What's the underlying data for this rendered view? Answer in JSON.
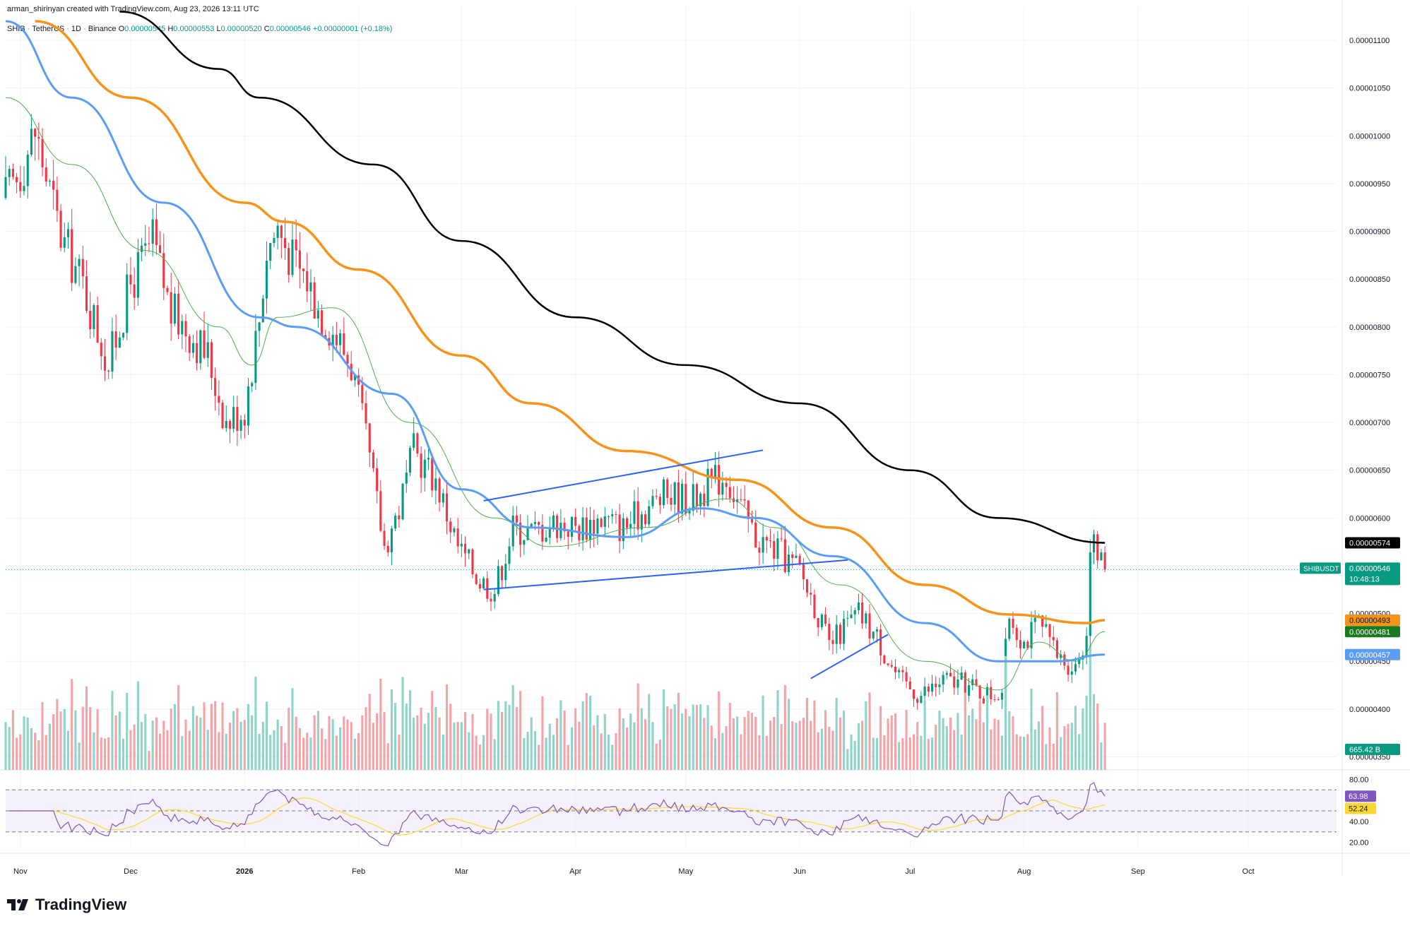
{
  "header": {
    "created_by": "arman_shirinyan created with TradingView.com, Aug 23, 2026 13:11 UTC",
    "symbol": "SHIB",
    "pair": "TetherUS",
    "interval": "1D",
    "exchange": "Binance",
    "open_label": "O",
    "open": "0.00000545",
    "high_label": "H",
    "high": "0.00000553",
    "low_label": "L",
    "low": "0.00000520",
    "close_label": "C",
    "close": "0.00000546",
    "change": "+0.00000001 (+0.18%)"
  },
  "brand": {
    "name": "TradingView"
  },
  "colors": {
    "up": "#089981",
    "down": "#f23645",
    "vol_up": "#8fd4c8",
    "vol_down": "#f5a3a9",
    "ma200": "#000000",
    "ma100": "#f7931a",
    "ma50": "#5b9cf6",
    "ma20": "#4caf50",
    "trendline": "#2962ff",
    "rsi": "#7e57c2",
    "rsi_ma": "#fdd835"
  },
  "chart_data": {
    "type": "candlestick",
    "x_axis_labels": [
      "Nov",
      "Dec",
      "2026",
      "Feb",
      "Mar",
      "Apr",
      "May",
      "Jun",
      "Jul",
      "Aug",
      "Sep",
      "Oct"
    ],
    "price_axis_labels": [
      "0.00001100",
      "0.00001050",
      "0.00001000",
      "0.00000950",
      "0.00000900",
      "0.00000850",
      "0.00000800",
      "0.00000750",
      "0.00000700",
      "0.00000650",
      "0.00000600",
      "0.00000550",
      "0.00000500",
      "0.00000450",
      "0.00000400",
      "0.00000350"
    ],
    "price_range": [
      3.4e-06,
      1.12e-05
    ],
    "x_start": "2025-10-28",
    "x_end": "2026-10-25",
    "last_price": {
      "label": "SHIBUSDT",
      "value": "0.00000546",
      "countdown": "10:48:13"
    },
    "ma_labels": [
      {
        "name": "MA200",
        "value": "0.00000574"
      },
      {
        "name": "MA100",
        "value": "0.00000493"
      },
      {
        "name": "MA20",
        "value": "0.00000481"
      },
      {
        "name": "MA50",
        "value": "0.00000457"
      }
    ],
    "volume_label": "665.42 B",
    "rsi": {
      "value": "63.98",
      "ma_value": "52.24",
      "axis_labels": [
        "80.00",
        "40.00",
        "20.00"
      ],
      "upper": 70,
      "middle": 50,
      "lower": 30
    },
    "anchors": [
      {
        "date": "2025-10-28",
        "price": 9.35e-06
      },
      {
        "date": "2025-11-01",
        "price": 9.65e-06
      },
      {
        "date": "2025-11-05",
        "price": 1.005e-05
      },
      {
        "date": "2025-11-12",
        "price": 8.95e-06
      },
      {
        "date": "2025-11-18",
        "price": 8.45e-06
      },
      {
        "date": "2025-11-25",
        "price": 7.6e-06
      },
      {
        "date": "2025-12-01",
        "price": 8.45e-06
      },
      {
        "date": "2025-12-07",
        "price": 8.9e-06
      },
      {
        "date": "2025-12-12",
        "price": 8.15e-06
      },
      {
        "date": "2025-12-16",
        "price": 8e-06
      },
      {
        "date": "2025-12-22",
        "price": 7.7e-06
      },
      {
        "date": "2025-12-27",
        "price": 7e-06
      },
      {
        "date": "2026-01-01",
        "price": 7.15e-06
      },
      {
        "date": "2026-01-05",
        "price": 8.1e-06
      },
      {
        "date": "2026-01-07",
        "price": 8.8e-06
      },
      {
        "date": "2026-01-10",
        "price": 9.05e-06
      },
      {
        "date": "2026-01-14",
        "price": 8.7e-06
      },
      {
        "date": "2026-01-18",
        "price": 8.5e-06
      },
      {
        "date": "2026-01-21",
        "price": 8.2e-06
      },
      {
        "date": "2026-01-26",
        "price": 7.9e-06
      },
      {
        "date": "2026-01-30",
        "price": 7.6e-06
      },
      {
        "date": "2026-02-04",
        "price": 6.6e-06
      },
      {
        "date": "2026-02-08",
        "price": 5.7e-06
      },
      {
        "date": "2026-02-12",
        "price": 6.1e-06
      },
      {
        "date": "2026-02-16",
        "price": 6.7e-06
      },
      {
        "date": "2026-02-22",
        "price": 6.4e-06
      },
      {
        "date": "2026-02-28",
        "price": 5.7e-06
      },
      {
        "date": "2026-03-06",
        "price": 5.35e-06
      },
      {
        "date": "2026-03-10",
        "price": 5.25e-06
      },
      {
        "date": "2026-03-15",
        "price": 5.9e-06
      },
      {
        "date": "2026-03-20",
        "price": 5.85e-06
      },
      {
        "date": "2026-03-26",
        "price": 5.95e-06
      },
      {
        "date": "2026-04-02",
        "price": 5.9e-06
      },
      {
        "date": "2026-04-08",
        "price": 6e-06
      },
      {
        "date": "2026-04-14",
        "price": 5.9e-06
      },
      {
        "date": "2026-04-20",
        "price": 6.1e-06
      },
      {
        "date": "2026-04-26",
        "price": 6.25e-06
      },
      {
        "date": "2026-05-03",
        "price": 6.2e-06
      },
      {
        "date": "2026-05-09",
        "price": 6.4e-06
      },
      {
        "date": "2026-05-12",
        "price": 6.45e-06
      },
      {
        "date": "2026-05-16",
        "price": 6.1e-06
      },
      {
        "date": "2026-05-20",
        "price": 5.8e-06
      },
      {
        "date": "2026-05-26",
        "price": 5.65e-06
      },
      {
        "date": "2026-06-01",
        "price": 5.45e-06
      },
      {
        "date": "2026-06-05",
        "price": 5.1e-06
      },
      {
        "date": "2026-06-09",
        "price": 4.65e-06
      },
      {
        "date": "2026-06-13",
        "price": 4.85e-06
      },
      {
        "date": "2026-06-17",
        "price": 5e-06
      },
      {
        "date": "2026-06-22",
        "price": 4.75e-06
      },
      {
        "date": "2026-06-28",
        "price": 4.3e-06
      },
      {
        "date": "2026-07-04",
        "price": 4.15e-06
      },
      {
        "date": "2026-07-10",
        "price": 4.3e-06
      },
      {
        "date": "2026-07-16",
        "price": 4.25e-06
      },
      {
        "date": "2026-07-22",
        "price": 4.15e-06
      },
      {
        "date": "2026-07-26",
        "price": 4.2e-06
      },
      {
        "date": "2026-07-28",
        "price": 5e-06
      },
      {
        "date": "2026-08-01",
        "price": 4.7e-06
      },
      {
        "date": "2026-08-05",
        "price": 4.9e-06
      },
      {
        "date": "2026-08-10",
        "price": 4.55e-06
      },
      {
        "date": "2026-08-15",
        "price": 4.45e-06
      },
      {
        "date": "2026-08-18",
        "price": 4.8e-06
      },
      {
        "date": "2026-08-19",
        "price": 5.8e-06
      },
      {
        "date": "2026-08-21",
        "price": 5.6e-06
      },
      {
        "date": "2026-08-23",
        "price": 5.46e-06
      }
    ],
    "ma200_points": [
      {
        "date": "2025-11-28",
        "price": 1.13e-05
      },
      {
        "date": "2025-12-25",
        "price": 1.07e-05
      },
      {
        "date": "2026-01-05",
        "price": 1.04e-05
      },
      {
        "date": "2026-02-05",
        "price": 9.7e-06
      },
      {
        "date": "2026-03-01",
        "price": 8.9e-06
      },
      {
        "date": "2026-04-01",
        "price": 8.1e-06
      },
      {
        "date": "2026-05-01",
        "price": 7.6e-06
      },
      {
        "date": "2026-06-01",
        "price": 7.2e-06
      },
      {
        "date": "2026-07-01",
        "price": 6.5e-06
      },
      {
        "date": "2026-07-25",
        "price": 6e-06
      },
      {
        "date": "2026-08-23",
        "price": 5.74e-06
      }
    ],
    "ma100_points": [
      {
        "date": "2025-11-05",
        "price": 1.12e-05
      },
      {
        "date": "2025-12-01",
        "price": 1.04e-05
      },
      {
        "date": "2026-01-01",
        "price": 9.3e-06
      },
      {
        "date": "2026-01-12",
        "price": 9.1e-06
      },
      {
        "date": "2026-02-01",
        "price": 8.6e-06
      },
      {
        "date": "2026-03-01",
        "price": 7.7e-06
      },
      {
        "date": "2026-03-20",
        "price": 7.2e-06
      },
      {
        "date": "2026-04-15",
        "price": 6.7e-06
      },
      {
        "date": "2026-05-15",
        "price": 6.4e-06
      },
      {
        "date": "2026-06-10",
        "price": 5.9e-06
      },
      {
        "date": "2026-07-05",
        "price": 5.3e-06
      },
      {
        "date": "2026-07-28",
        "price": 4.99e-06
      },
      {
        "date": "2026-08-18",
        "price": 4.9e-06
      },
      {
        "date": "2026-08-23",
        "price": 4.93e-06
      }
    ],
    "ma50_points": [
      {
        "date": "2025-10-28",
        "price": 1.12e-05
      },
      {
        "date": "2025-11-15",
        "price": 1.04e-05
      },
      {
        "date": "2025-12-10",
        "price": 9.3e-06
      },
      {
        "date": "2026-01-05",
        "price": 8.1e-06
      },
      {
        "date": "2026-01-15",
        "price": 8e-06
      },
      {
        "date": "2026-02-10",
        "price": 7.3e-06
      },
      {
        "date": "2026-03-01",
        "price": 6.3e-06
      },
      {
        "date": "2026-03-20",
        "price": 5.9e-06
      },
      {
        "date": "2026-04-15",
        "price": 5.8e-06
      },
      {
        "date": "2026-05-05",
        "price": 6.1e-06
      },
      {
        "date": "2026-05-20",
        "price": 6e-06
      },
      {
        "date": "2026-06-10",
        "price": 5.6e-06
      },
      {
        "date": "2026-07-05",
        "price": 4.9e-06
      },
      {
        "date": "2026-07-25",
        "price": 4.5e-06
      },
      {
        "date": "2026-08-10",
        "price": 4.5e-06
      },
      {
        "date": "2026-08-23",
        "price": 4.57e-06
      }
    ],
    "ma20_points": [
      {
        "date": "2025-10-28",
        "price": 1.04e-05
      },
      {
        "date": "2025-11-15",
        "price": 9.7e-06
      },
      {
        "date": "2025-12-05",
        "price": 8.8e-06
      },
      {
        "date": "2025-12-25",
        "price": 8e-06
      },
      {
        "date": "2026-01-03",
        "price": 7.6e-06
      },
      {
        "date": "2026-01-10",
        "price": 8.1e-06
      },
      {
        "date": "2026-01-25",
        "price": 8.2e-06
      },
      {
        "date": "2026-02-15",
        "price": 7e-06
      },
      {
        "date": "2026-03-10",
        "price": 6e-06
      },
      {
        "date": "2026-03-25",
        "price": 5.7e-06
      },
      {
        "date": "2026-04-20",
        "price": 5.9e-06
      },
      {
        "date": "2026-05-12",
        "price": 6.2e-06
      },
      {
        "date": "2026-05-25",
        "price": 5.9e-06
      },
      {
        "date": "2026-06-12",
        "price": 5.3e-06
      },
      {
        "date": "2026-07-05",
        "price": 4.5e-06
      },
      {
        "date": "2026-07-25",
        "price": 4.2e-06
      },
      {
        "date": "2026-08-05",
        "price": 4.7e-06
      },
      {
        "date": "2026-08-15",
        "price": 4.5e-06
      },
      {
        "date": "2026-08-23",
        "price": 4.81e-06
      }
    ],
    "trendlines": [
      {
        "from": {
          "date": "2026-03-07",
          "price": 5.25e-06
        },
        "to": {
          "date": "2026-06-14",
          "price": 5.56e-06
        }
      },
      {
        "from": {
          "date": "2026-03-07",
          "price": 6.18e-06
        },
        "to": {
          "date": "2026-05-22",
          "price": 6.71e-06
        }
      },
      {
        "from": {
          "date": "2026-06-04",
          "price": 4.32e-06
        },
        "to": {
          "date": "2026-06-25",
          "price": 4.78e-06
        }
      }
    ]
  }
}
